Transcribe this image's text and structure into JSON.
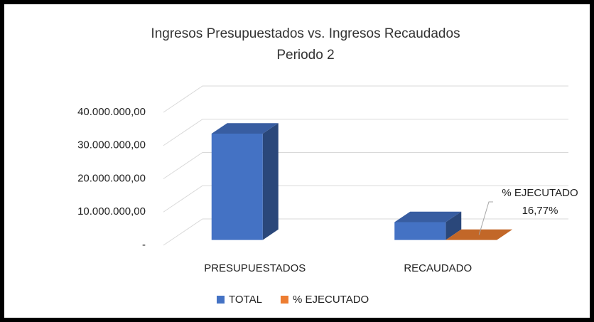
{
  "chart_data": {
    "type": "bar3d",
    "title": "Ingresos Presupuestados vs. Ingresos Recaudados",
    "subtitle": "Periodo 2",
    "categories": [
      "PRESUPUESTADOS",
      "RECAUDADO"
    ],
    "series": [
      {
        "name": "TOTAL",
        "color": "#4472c4",
        "values": [
          32000000,
          5370000
        ]
      },
      {
        "name": "% EJECUTADO",
        "color": "#ed7d31",
        "values": [
          null,
          16.77
        ],
        "value_labels": [
          null,
          "16,77%"
        ]
      }
    ],
    "ylim": [
      0,
      40000000
    ],
    "yticks": [
      {
        "value": 0,
        "label": "-"
      },
      {
        "value": 10000000,
        "label": "10.000.000,00"
      },
      {
        "value": 20000000,
        "label": "20.000.000,00"
      },
      {
        "value": 30000000,
        "label": "30.000.000,00"
      },
      {
        "value": 40000000,
        "label": "40.000.000,00"
      }
    ],
    "grid": true,
    "legend": "bottom"
  }
}
